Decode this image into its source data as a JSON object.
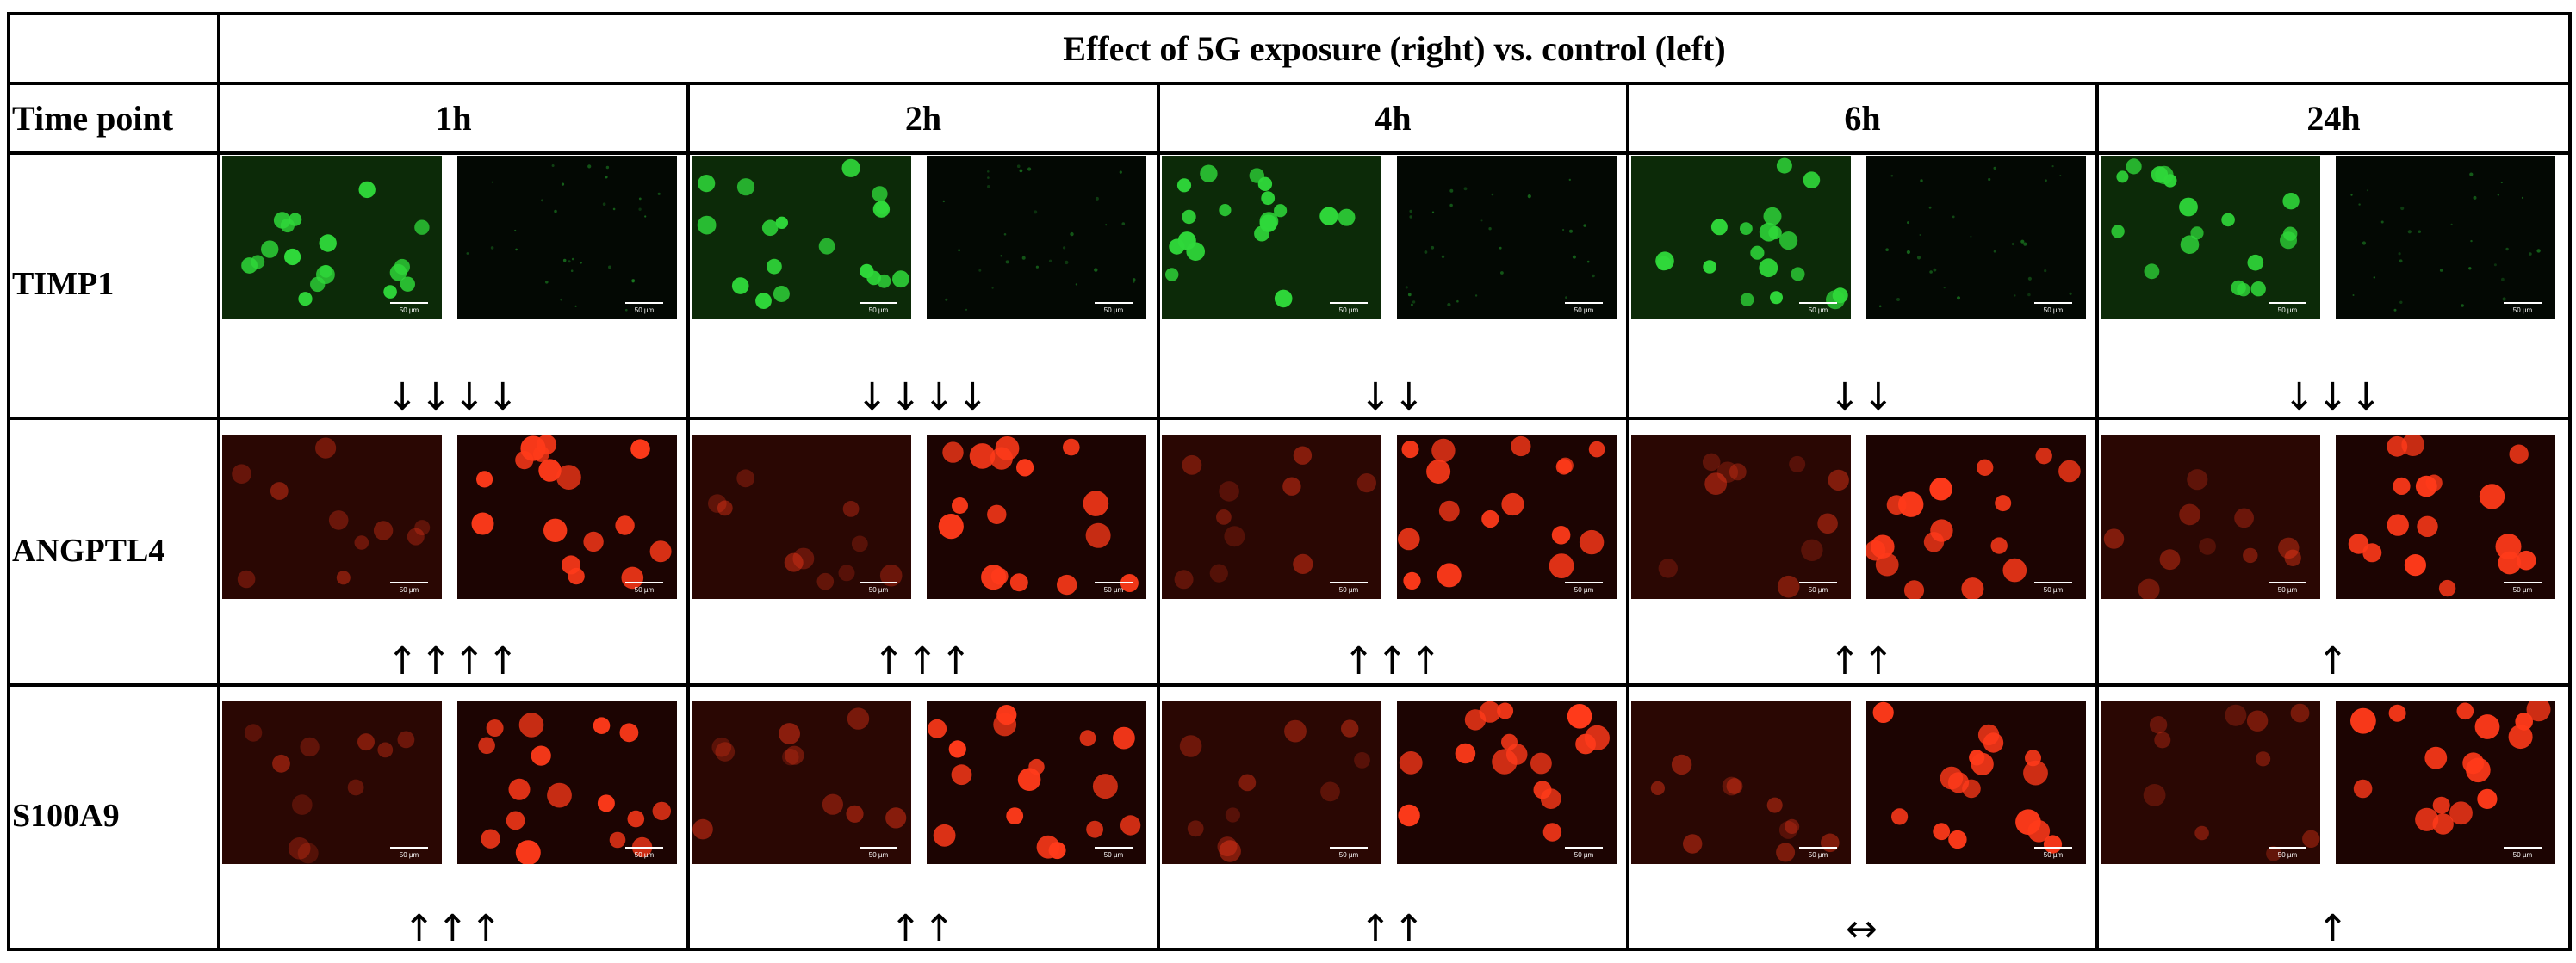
{
  "table": {
    "header": "Effect of 5G exposure (right) vs. control (left)",
    "time_label": "Time point",
    "time_points": [
      "1h",
      "2h",
      "4h",
      "6h",
      "24h"
    ],
    "rows": [
      {
        "name": "TIMP1",
        "stain_color": "#2fd83a",
        "scale_bar": "50 µm",
        "arrows": [
          "↓↓↓↓",
          "↓↓↓↓",
          "↓↓",
          "↓↓",
          "↓↓↓"
        ]
      },
      {
        "name": "ANGPTL4",
        "stain_color": "#ff3a1a",
        "scale_bar": "50 µm",
        "arrows": [
          "↑↑↑↑",
          "↑↑↑",
          "↑↑↑",
          "↑↑",
          "↑"
        ]
      },
      {
        "name": "S100A9",
        "stain_color": "#ff3a1a",
        "scale_bar": "50 µm",
        "arrows": [
          "↑↑↑",
          "↑↑",
          "↑↑",
          "↔",
          "↑"
        ]
      }
    ]
  }
}
